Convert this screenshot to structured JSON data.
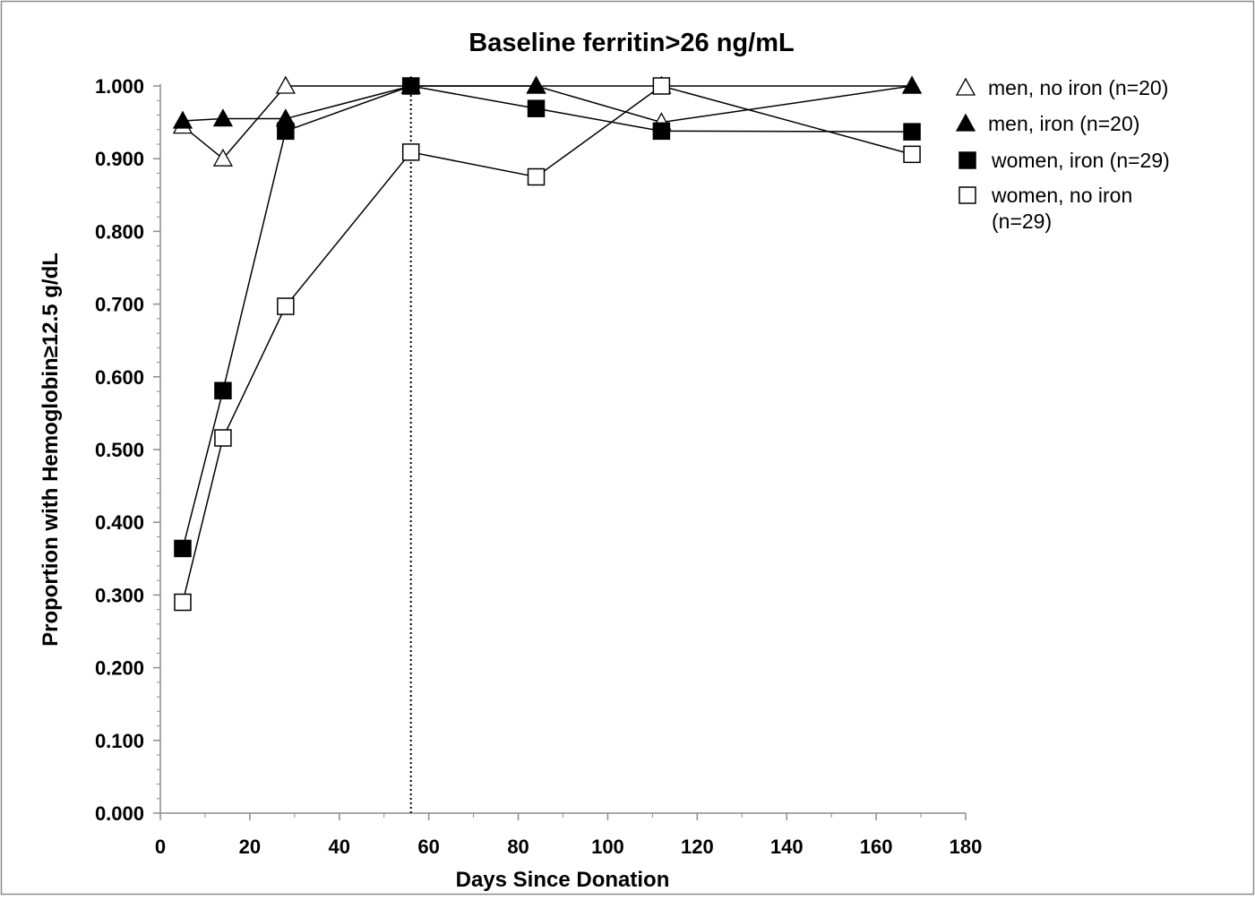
{
  "chart_data": {
    "type": "line",
    "title": "Baseline ferritin>26 ng/mL",
    "xlabel": "Days Since Donation",
    "ylabel": "Proportion with Hemoglobin≥12.5 g/dL",
    "xlim": [
      0,
      180
    ],
    "ylim": [
      0,
      1
    ],
    "xticks": [
      0,
      20,
      40,
      60,
      80,
      100,
      120,
      140,
      160,
      180
    ],
    "xtick_labels": [
      "0",
      "20",
      "40",
      "60",
      "80",
      "100",
      "120",
      "140",
      "160",
      "180"
    ],
    "yticks": [
      0,
      0.1,
      0.2,
      0.3,
      0.4,
      0.5,
      0.6,
      0.7,
      0.8,
      0.9,
      1.0
    ],
    "ytick_labels": [
      "0.000",
      "0.100",
      "0.200",
      "0.300",
      "0.400",
      "0.500",
      "0.600",
      "0.700",
      "0.800",
      "0.900",
      "1.000"
    ],
    "grid": false,
    "legend_position": "right",
    "reference_line": {
      "x": 56,
      "style": "dotted"
    },
    "series": [
      {
        "name": "men, no iron (n=20)",
        "marker": "triangle-open",
        "color": "#000000",
        "x": [
          5,
          14,
          28,
          56,
          84,
          112,
          168
        ],
        "y": [
          0.945,
          0.9,
          1.0,
          1.0,
          1.0,
          0.95,
          1.0
        ]
      },
      {
        "name": "men, iron (n=20)",
        "marker": "triangle-filled",
        "color": "#000000",
        "x": [
          5,
          14,
          28,
          56,
          84,
          112,
          168
        ],
        "y": [
          0.952,
          0.955,
          0.955,
          1.0,
          1.0,
          1.0,
          1.0
        ]
      },
      {
        "name": "women, iron (n=29)",
        "marker": "square-filled",
        "color": "#000000",
        "x": [
          5,
          14,
          28,
          56,
          84,
          112,
          168
        ],
        "y": [
          0.364,
          0.581,
          0.938,
          1.0,
          0.969,
          0.938,
          0.937
        ]
      },
      {
        "name": "women, no iron (n=29)",
        "legend_lines": [
          "women, no iron",
          "(n=29)"
        ],
        "marker": "square-open",
        "color": "#000000",
        "x": [
          5,
          14,
          28,
          56,
          84,
          112,
          168
        ],
        "y": [
          0.29,
          0.516,
          0.697,
          0.909,
          0.875,
          1.0,
          0.906
        ]
      }
    ]
  }
}
